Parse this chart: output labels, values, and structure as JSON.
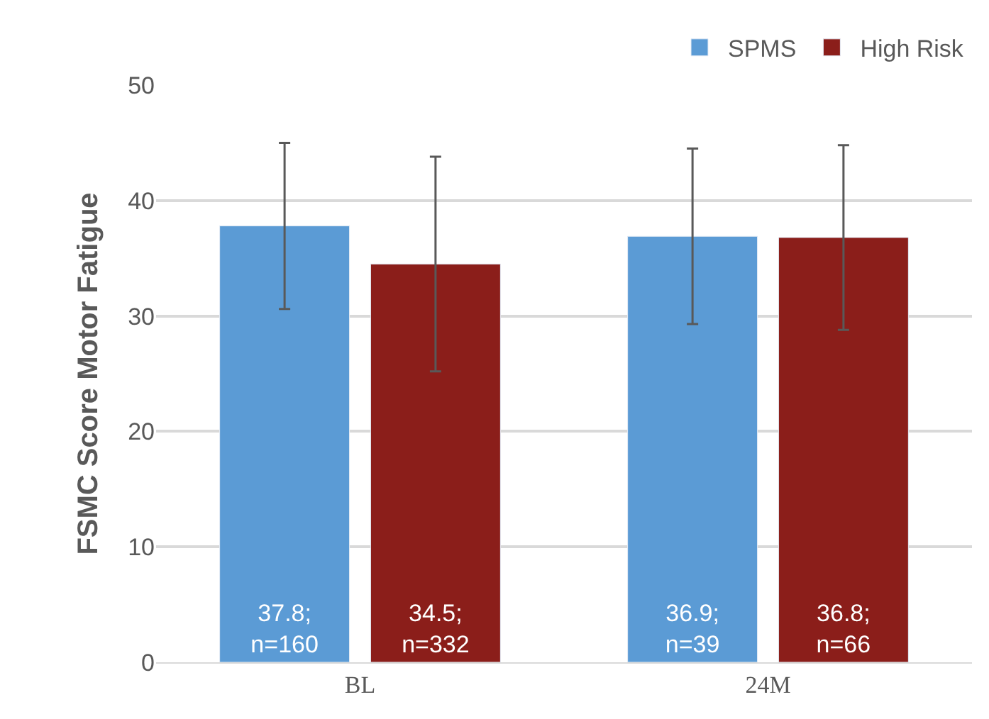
{
  "chart_data": {
    "type": "bar",
    "ylabel": "FSMC Score Motor Fatigue",
    "categories": [
      "BL",
      "24M"
    ],
    "series": [
      {
        "name": "SPMS",
        "color": "#5b9bd5",
        "values": [
          37.8,
          36.9
        ],
        "errors": [
          7.2,
          7.6
        ],
        "value_labels": [
          "37.8;\nn=160",
          "36.9;\nn=39"
        ]
      },
      {
        "name": "High Risk",
        "color": "#8b1e1a",
        "values": [
          34.5,
          36.8
        ],
        "errors": [
          9.3,
          8.0
        ],
        "value_labels": [
          "34.5;\nn=332",
          "36.8;\nn=66"
        ]
      }
    ],
    "ylim": [
      0,
      50
    ],
    "yticks": [
      0,
      10,
      20,
      30,
      40,
      50
    ],
    "grid": "y",
    "legend": "top right"
  }
}
